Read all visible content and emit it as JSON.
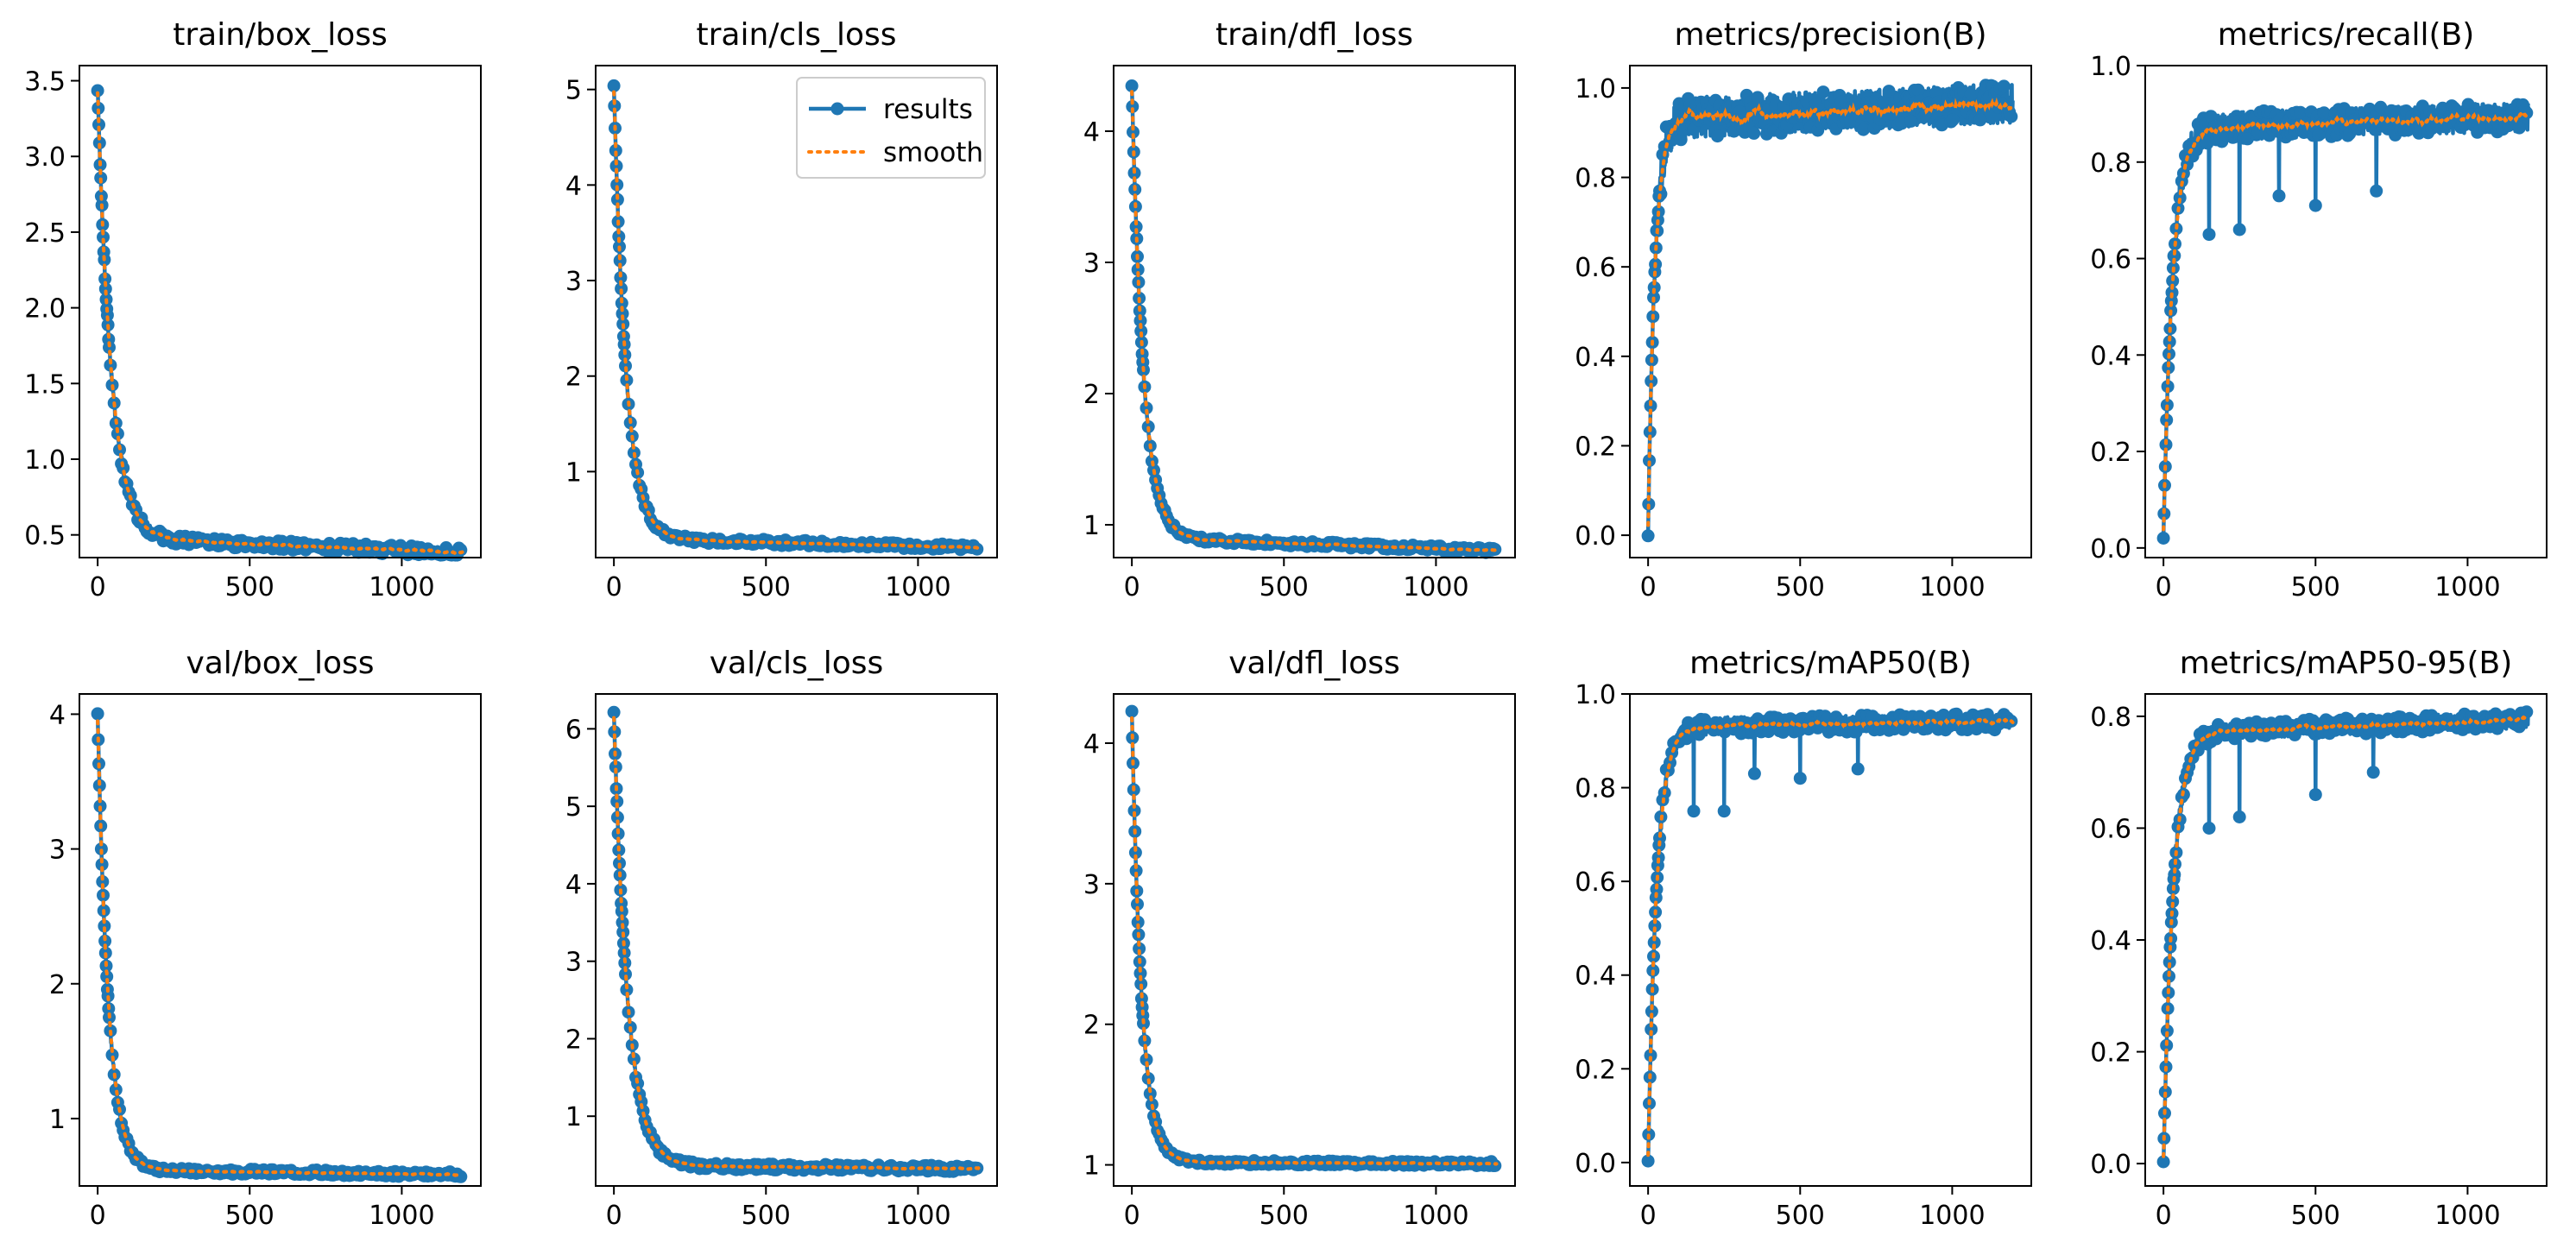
{
  "figure": {
    "series_names": [
      "results",
      "smooth"
    ],
    "colors": {
      "results": "#1f77b4",
      "smooth": "#ff7f0e",
      "axes": "#000000",
      "background": "#ffffff"
    }
  },
  "chart_data": [
    {
      "type": "line",
      "title": "train/box_loss",
      "xlabel": "",
      "ylabel": "",
      "xlim": [
        -60,
        1260
      ],
      "ylim": [
        0.35,
        3.6
      ],
      "xticks": [
        0,
        500,
        1000
      ],
      "yticks": [
        0.5,
        1.0,
        1.5,
        2.0,
        2.5,
        3.0,
        3.5
      ],
      "ytick_format": 1,
      "n_epochs": 1200,
      "curve": {
        "kind": "decay",
        "start": 3.45,
        "end": 0.48,
        "tau": 45,
        "tail_slope": -8e-05
      },
      "noise": 0.03,
      "spikes": [],
      "legend": false
    },
    {
      "type": "line",
      "title": "train/cls_loss",
      "xlabel": "",
      "ylabel": "",
      "xlim": [
        -60,
        1260
      ],
      "ylim": [
        0.1,
        5.25
      ],
      "xticks": [
        0,
        500,
        1000
      ],
      "yticks": [
        1,
        2,
        3,
        4,
        5
      ],
      "ytick_format": 0,
      "n_epochs": 1200,
      "curve": {
        "kind": "decay",
        "start": 5.05,
        "end": 0.3,
        "tau": 40,
        "tail_slope": -8e-05
      },
      "noise": 0.03,
      "spikes": [],
      "legend": true,
      "legend_position": "upper right"
    },
    {
      "type": "line",
      "title": "train/dfl_loss",
      "xlabel": "",
      "ylabel": "",
      "xlim": [
        -60,
        1260
      ],
      "ylim": [
        0.75,
        4.5
      ],
      "xticks": [
        0,
        500,
        1000
      ],
      "yticks": [
        1,
        2,
        3,
        4
      ],
      "ytick_format": 0,
      "n_epochs": 1200,
      "curve": {
        "kind": "decay",
        "start": 4.35,
        "end": 0.9,
        "tau": 38,
        "tail_slope": -8e-05
      },
      "noise": 0.02,
      "spikes": [],
      "legend": false
    },
    {
      "type": "line",
      "title": "metrics/precision(B)",
      "xlabel": "",
      "ylabel": "",
      "xlim": [
        -60,
        1260
      ],
      "ylim": [
        -0.05,
        1.05
      ],
      "xticks": [
        0,
        500,
        1000
      ],
      "yticks": [
        0.0,
        0.2,
        0.4,
        0.6,
        0.8,
        1.0
      ],
      "ytick_format": 1,
      "n_epochs": 1200,
      "curve": {
        "kind": "rise",
        "start": 0.0,
        "end": 0.93,
        "tau": 22,
        "tail_slope": 3e-05
      },
      "noise": 0.045,
      "spikes": [],
      "legend": false
    },
    {
      "type": "line",
      "title": "metrics/recall(B)",
      "xlabel": "",
      "ylabel": "",
      "xlim": [
        -60,
        1260
      ],
      "ylim": [
        -0.02,
        1.0
      ],
      "xticks": [
        0,
        500,
        1000
      ],
      "yticks": [
        0.0,
        0.2,
        0.4,
        0.6,
        0.8,
        1.0
      ],
      "ytick_format": 1,
      "n_epochs": 1200,
      "curve": {
        "kind": "rise",
        "start": 0.02,
        "end": 0.87,
        "tau": 30,
        "tail_slope": 2e-05
      },
      "noise": 0.03,
      "spikes": [
        [
          150,
          0.65
        ],
        [
          250,
          0.66
        ],
        [
          380,
          0.73
        ],
        [
          500,
          0.71
        ],
        [
          700,
          0.74
        ]
      ],
      "legend": false
    },
    {
      "type": "line",
      "title": "val/box_loss",
      "xlabel": "",
      "ylabel": "",
      "xlim": [
        -60,
        1260
      ],
      "ylim": [
        0.5,
        4.15
      ],
      "xticks": [
        0,
        500,
        1000
      ],
      "yticks": [
        1,
        2,
        3,
        4
      ],
      "ytick_format": 0,
      "n_epochs": 1200,
      "curve": {
        "kind": "decay",
        "start": 4.0,
        "end": 0.62,
        "tau": 35,
        "tail_slope": -3e-05
      },
      "noise": 0.02,
      "spikes": [],
      "legend": false
    },
    {
      "type": "line",
      "title": "val/cls_loss",
      "xlabel": "",
      "ylabel": "",
      "xlim": [
        -60,
        1260
      ],
      "ylim": [
        0.1,
        6.45
      ],
      "xticks": [
        0,
        500,
        1000
      ],
      "yticks": [
        1,
        2,
        3,
        4,
        5,
        6
      ],
      "ytick_format": 0,
      "n_epochs": 1200,
      "curve": {
        "kind": "decay",
        "start": 6.2,
        "end": 0.36,
        "tau": 45,
        "tail_slope": -3e-05
      },
      "noise": 0.04,
      "spikes": [],
      "legend": false
    },
    {
      "type": "line",
      "title": "val/dfl_loss",
      "xlabel": "",
      "ylabel": "",
      "xlim": [
        -60,
        1260
      ],
      "ylim": [
        0.85,
        4.35
      ],
      "xticks": [
        0,
        500,
        1000
      ],
      "yticks": [
        1,
        2,
        3,
        4
      ],
      "ytick_format": 0,
      "n_epochs": 1200,
      "curve": {
        "kind": "decay",
        "start": 4.22,
        "end": 1.02,
        "tau": 32,
        "tail_slope": -1e-05
      },
      "noise": 0.015,
      "spikes": [],
      "legend": false
    },
    {
      "type": "line",
      "title": "metrics/mAP50(B)",
      "xlabel": "",
      "ylabel": "",
      "xlim": [
        -60,
        1260
      ],
      "ylim": [
        -0.05,
        1.0
      ],
      "xticks": [
        0,
        500,
        1000
      ],
      "yticks": [
        0.0,
        0.2,
        0.4,
        0.6,
        0.8,
        1.0
      ],
      "ytick_format": 1,
      "n_epochs": 1200,
      "curve": {
        "kind": "rise",
        "start": 0.0,
        "end": 0.93,
        "tau": 28,
        "tail_slope": 1e-05
      },
      "noise": 0.018,
      "spikes": [
        [
          150,
          0.75
        ],
        [
          250,
          0.75
        ],
        [
          350,
          0.83
        ],
        [
          500,
          0.82
        ],
        [
          690,
          0.84
        ]
      ],
      "legend": false
    },
    {
      "type": "line",
      "title": "metrics/mAP50-95(B)",
      "xlabel": "",
      "ylabel": "",
      "xlim": [
        -60,
        1260
      ],
      "ylim": [
        -0.04,
        0.84
      ],
      "xticks": [
        0,
        500,
        1000
      ],
      "yticks": [
        0.0,
        0.2,
        0.4,
        0.6,
        0.8
      ],
      "ytick_format": 1,
      "n_epochs": 1200,
      "curve": {
        "kind": "rise",
        "start": 0.0,
        "end": 0.77,
        "tau": 32,
        "tail_slope": 2e-05
      },
      "noise": 0.015,
      "spikes": [
        [
          150,
          0.6
        ],
        [
          250,
          0.62
        ],
        [
          500,
          0.66
        ],
        [
          690,
          0.7
        ]
      ],
      "legend": false
    }
  ]
}
